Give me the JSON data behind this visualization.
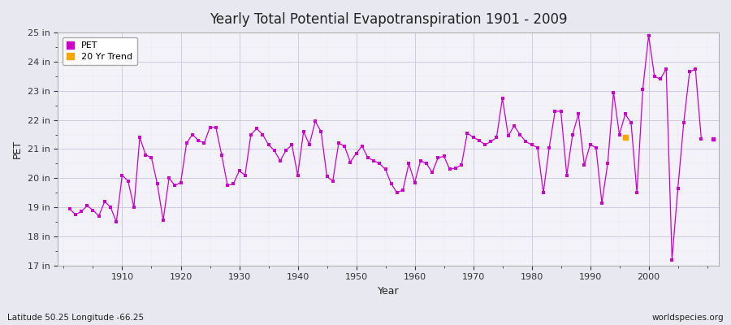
{
  "title": "Yearly Total Potential Evapotranspiration 1901 - 2009",
  "xlabel": "Year",
  "ylabel": "PET",
  "subtitle": "Latitude 50.25 Longitude -66.25",
  "watermark": "worldspecies.org",
  "fig_bg_color": "#e8e8f0",
  "plot_bg_color": "#f2f2f8",
  "line_color": "#cc00cc",
  "trend_color": "#ffa500",
  "ylim": [
    17,
    25
  ],
  "xlim": [
    1899,
    2012
  ],
  "ytick_labels": [
    "17 in",
    "18 in",
    "19 in",
    "20 in",
    "21 in",
    "22 in",
    "23 in",
    "24 in",
    "25 in"
  ],
  "ytick_values": [
    17,
    18,
    19,
    20,
    21,
    22,
    23,
    24,
    25
  ],
  "xtick_values": [
    1910,
    1920,
    1930,
    1940,
    1950,
    1960,
    1970,
    1980,
    1990,
    2000
  ],
  "years": [
    1901,
    1902,
    1903,
    1904,
    1905,
    1906,
    1907,
    1908,
    1909,
    1910,
    1911,
    1912,
    1913,
    1914,
    1915,
    1916,
    1917,
    1918,
    1919,
    1920,
    1921,
    1922,
    1923,
    1924,
    1925,
    1926,
    1927,
    1928,
    1929,
    1930,
    1931,
    1932,
    1933,
    1934,
    1935,
    1936,
    1937,
    1938,
    1939,
    1940,
    1941,
    1942,
    1943,
    1944,
    1945,
    1946,
    1947,
    1948,
    1949,
    1950,
    1951,
    1952,
    1953,
    1954,
    1955,
    1956,
    1957,
    1958,
    1959,
    1960,
    1961,
    1962,
    1963,
    1964,
    1965,
    1966,
    1967,
    1968,
    1969,
    1970,
    1971,
    1972,
    1973,
    1974,
    1975,
    1976,
    1977,
    1978,
    1979,
    1980,
    1981,
    1982,
    1983,
    1984,
    1985,
    1986,
    1987,
    1988,
    1989,
    1990,
    1991,
    1992,
    1993,
    1994,
    1995,
    1996,
    1997,
    1998,
    1999,
    2000,
    2001,
    2002,
    2003,
    2004,
    2005,
    2006,
    2007,
    2008,
    2009
  ],
  "pet_values": [
    18.95,
    18.75,
    18.85,
    19.05,
    18.9,
    18.7,
    19.2,
    19.0,
    18.5,
    20.1,
    19.9,
    19.0,
    21.4,
    20.8,
    20.7,
    19.8,
    18.55,
    20.0,
    19.75,
    19.85,
    21.2,
    21.5,
    21.3,
    21.2,
    21.75,
    21.75,
    20.8,
    19.75,
    19.8,
    20.25,
    20.1,
    21.5,
    21.7,
    21.5,
    21.15,
    20.95,
    20.6,
    20.95,
    21.15,
    20.1,
    21.6,
    21.15,
    21.95,
    21.6,
    20.05,
    19.9,
    21.2,
    21.1,
    20.55,
    20.85,
    21.1,
    20.7,
    20.6,
    20.5,
    20.3,
    19.8,
    19.5,
    19.6,
    20.5,
    19.85,
    20.6,
    20.5,
    20.2,
    20.7,
    20.75,
    20.3,
    20.35,
    20.45,
    21.55,
    21.4,
    21.3,
    21.15,
    21.25,
    21.4,
    22.75,
    21.45,
    21.8,
    21.5,
    21.25,
    21.15,
    21.05,
    19.5,
    21.05,
    22.3,
    22.3,
    20.1,
    21.5,
    22.2,
    20.45,
    21.15,
    21.05,
    19.15,
    20.5,
    22.95,
    21.5,
    22.2,
    21.9,
    19.5,
    23.05,
    24.9,
    23.5,
    23.4,
    23.75,
    17.2,
    19.65,
    21.9,
    23.65,
    23.75,
    21.35
  ],
  "trend_year": 1996,
  "trend_value": 21.4,
  "outlier_year": 2011,
  "outlier_value": 21.35
}
